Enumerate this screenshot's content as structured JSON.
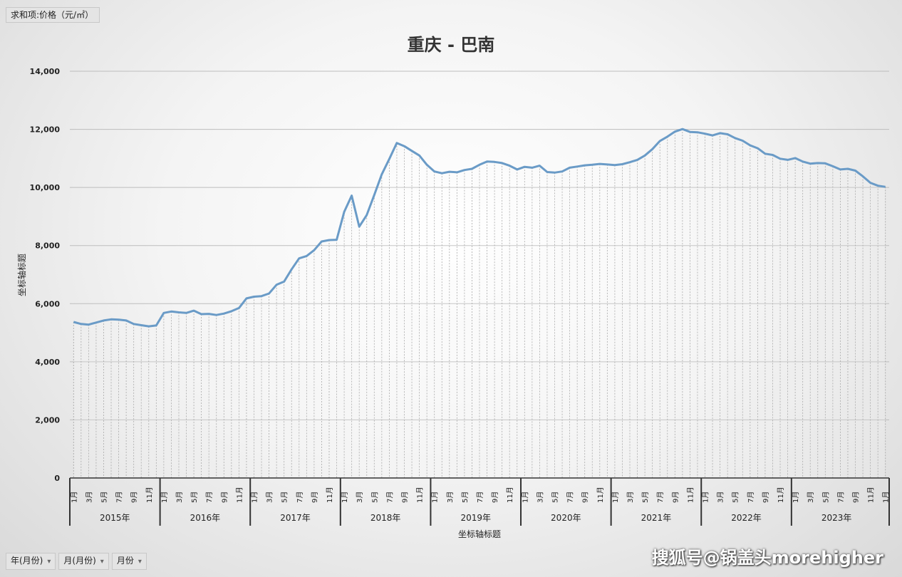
{
  "pivot": {
    "value_field": "求和项:价格（元/㎡）",
    "axis_fields": [
      "年(月份)",
      "月(月份)",
      "月份"
    ]
  },
  "watermark": "搜狐号@锅盖头morehigher",
  "chart_data": {
    "type": "area",
    "title": "重庆 - 巴南",
    "xlabel": "坐标轴标题",
    "ylabel": "坐标轴标题",
    "ylim": [
      0,
      14000
    ],
    "yticks": [
      0,
      2000,
      4000,
      6000,
      8000,
      10000,
      12000,
      14000
    ],
    "ytick_labels": [
      "0",
      "2,000",
      "4,000",
      "6,000",
      "8,000",
      "10,000",
      "12,000",
      "14,000"
    ],
    "years": [
      "2015年",
      "2016年",
      "2017年",
      "2018年",
      "2019年",
      "2020年",
      "2021年",
      "2022年",
      "2023年"
    ],
    "month_labels": [
      "1月",
      "",
      "3月",
      "",
      "5月",
      "",
      "7月",
      "",
      "9月",
      "",
      "11月",
      ""
    ],
    "series": [
      {
        "color": "#6a9bc7",
        "values": [
          5370,
          5300,
          5280,
          5350,
          5420,
          5460,
          5450,
          5420,
          5300,
          5260,
          5220,
          5250,
          5680,
          5730,
          5700,
          5680,
          5760,
          5640,
          5650,
          5610,
          5660,
          5740,
          5850,
          6180,
          6240,
          6260,
          6350,
          6650,
          6760,
          7180,
          7560,
          7640,
          7840,
          8140,
          8190,
          8200,
          9160,
          9720,
          8650,
          9050,
          9740,
          10450,
          10980,
          11530,
          11420,
          11260,
          11100,
          10780,
          10550,
          10490,
          10540,
          10520,
          10600,
          10640,
          10780,
          10890,
          10880,
          10840,
          10750,
          10620,
          10710,
          10680,
          10750,
          10530,
          10510,
          10550,
          10680,
          10720,
          10760,
          10780,
          10810,
          10790,
          10770,
          10800,
          10870,
          10950,
          11100,
          11320,
          11600,
          11750,
          11920,
          12010,
          11910,
          11900,
          11850,
          11790,
          11870,
          11830,
          11700,
          11610,
          11450,
          11350,
          11160,
          11120,
          10990,
          10950,
          11010,
          10890,
          10820,
          10840,
          10830,
          10730,
          10620,
          10640,
          10580,
          10380,
          10160,
          10060,
          10020
        ]
      }
    ]
  }
}
